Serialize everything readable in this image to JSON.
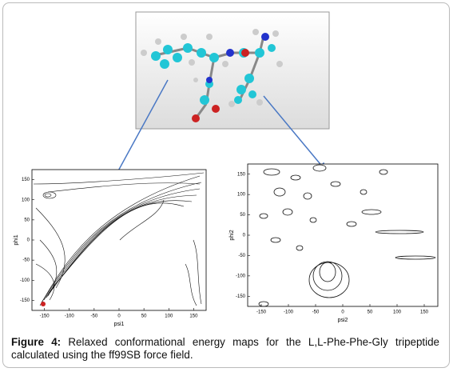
{
  "figure": {
    "label": "Figure 4:",
    "caption": "Relaxed conformational energy maps for the L,L-Phe-Phe-Gly tripeptide calculated using the ff99SB force field."
  },
  "plots": [
    {
      "x_label": "psi1",
      "y_label": "phi1",
      "x_ticks": [
        "-150",
        "-100",
        "-50",
        "0",
        "50",
        "100",
        "150"
      ],
      "y_ticks": [
        "150",
        "100",
        "50",
        "0",
        "-50",
        "-100",
        "-150"
      ]
    },
    {
      "x_label": "psi2",
      "y_label": "phi2",
      "x_ticks": [
        "-150",
        "-100",
        "-50",
        "0",
        "50",
        "100",
        "150"
      ],
      "y_ticks": [
        "150",
        "100",
        "50",
        "0",
        "-50",
        "-100",
        "-150"
      ]
    }
  ]
}
